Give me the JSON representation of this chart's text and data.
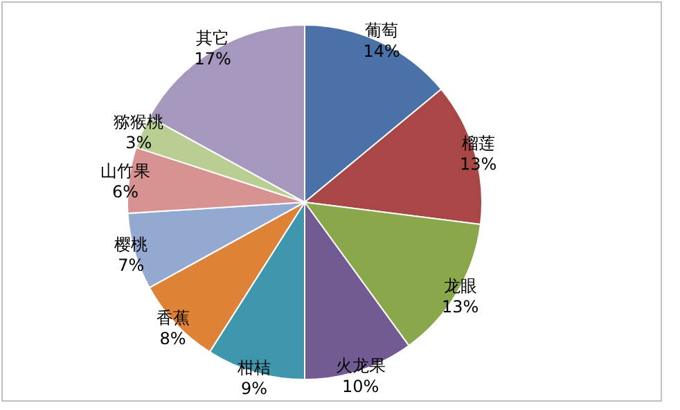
{
  "chart_data": {
    "type": "pie",
    "categories": [
      "葡萄",
      "榴莲",
      "龙眼",
      "火龙果",
      "柑桔",
      "香蕉",
      "樱桃",
      "山竹果",
      "猕猴桃",
      "其它"
    ],
    "values": [
      14,
      13,
      13,
      10,
      9,
      8,
      7,
      6,
      3,
      17
    ],
    "colors": [
      "#4a72a8",
      "#a84745",
      "#8aa74c",
      "#725a92",
      "#3f97ae",
      "#dd8237",
      "#93a9d2",
      "#d69391",
      "#b9ce92",
      "#a698bd"
    ],
    "value_labels": [
      "14%",
      "13%",
      "13%",
      "10%",
      "9%",
      "8%",
      "7%",
      "6%",
      "3%",
      "17%"
    ]
  }
}
